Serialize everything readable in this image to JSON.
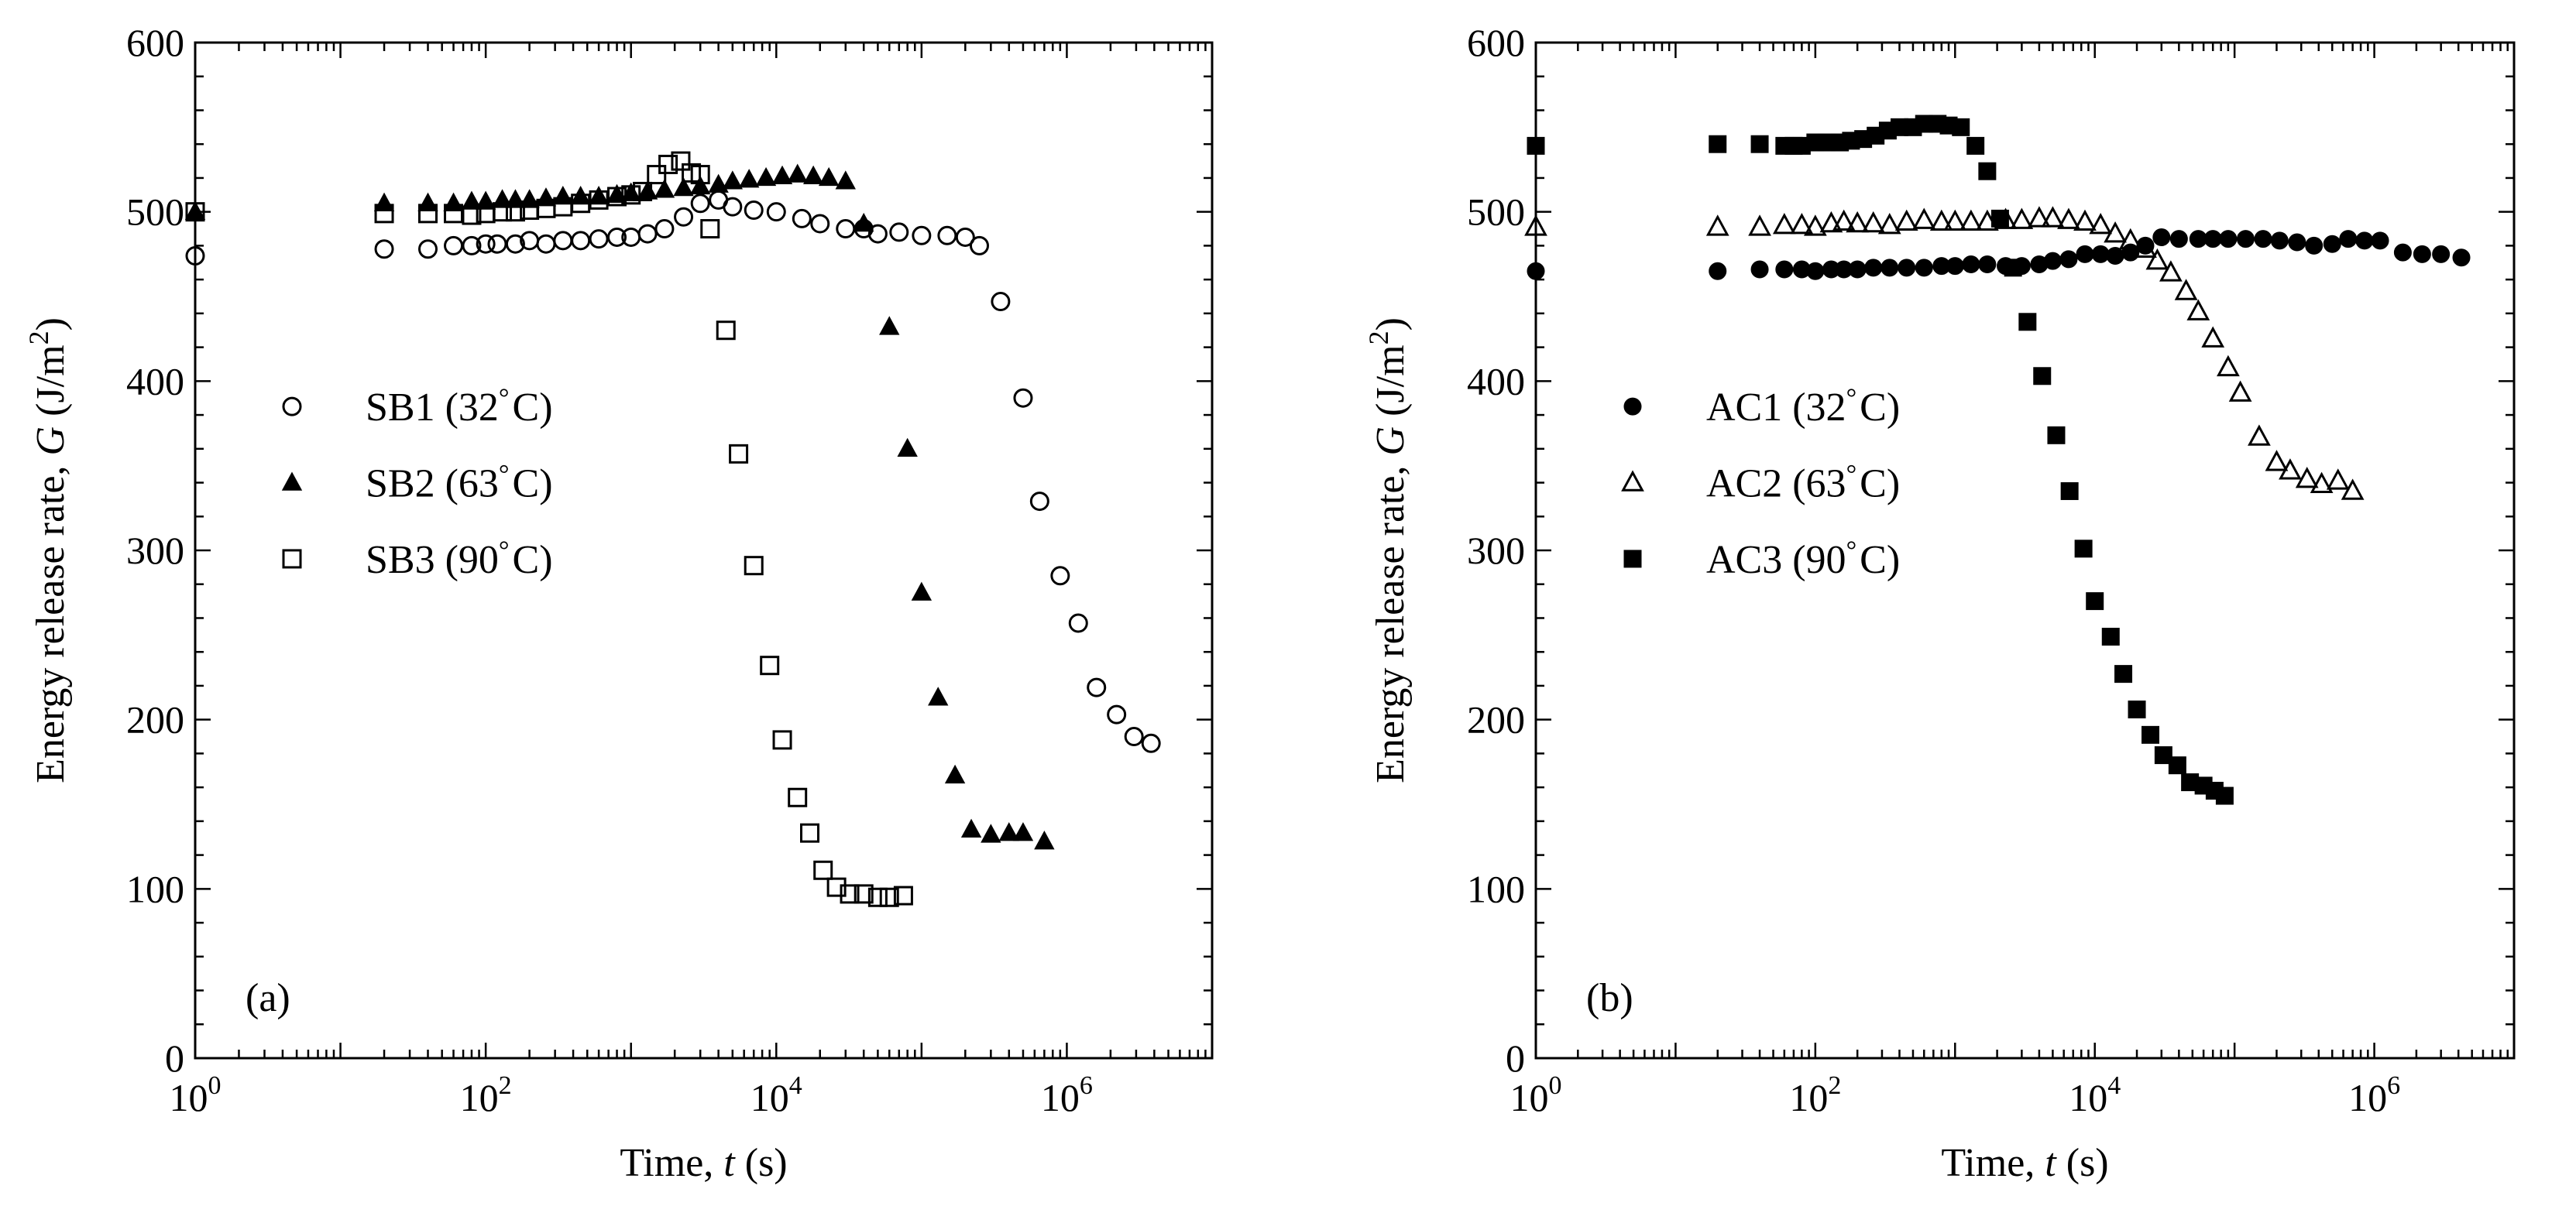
{
  "chart_data": [
    {
      "type": "scatter",
      "panel_label": "(a)",
      "xlabel": "Time, t (s)",
      "xlabel_parts": {
        "prefix": "Time, ",
        "var": "t",
        "suffix": " (s)"
      },
      "ylabel": "Energy release rate, G (J/m2)",
      "ylabel_parts": {
        "prefix": "Energy release rate, ",
        "var": "G",
        "unit_open": " (J/m",
        "sup": "2",
        "unit_close": ")"
      },
      "x_scale": "log",
      "xlim": [
        1,
        10000000
      ],
      "ylim": [
        0,
        600
      ],
      "xticks": [
        {
          "value": 1,
          "base": "10",
          "exp": "0"
        },
        {
          "value": 100,
          "base": "10",
          "exp": "2"
        },
        {
          "value": 10000,
          "base": "10",
          "exp": "4"
        },
        {
          "value": 1000000,
          "base": "10",
          "exp": "6"
        }
      ],
      "yticks": [
        {
          "value": 0,
          "label": "0"
        },
        {
          "value": 100,
          "label": "100"
        },
        {
          "value": 200,
          "label": "200"
        },
        {
          "value": 300,
          "label": "300"
        },
        {
          "value": 400,
          "label": "400"
        },
        {
          "value": 500,
          "label": "500"
        },
        {
          "value": 600,
          "label": "600"
        }
      ],
      "legend_position": "center-left",
      "series": [
        {
          "name": "SB1 (32°C)",
          "marker": "circle-open",
          "x": [
            1,
            20,
            40,
            60,
            80,
            100,
            120,
            160,
            200,
            260,
            340,
            450,
            600,
            800,
            1000,
            1300,
            1700,
            2300,
            3000,
            4000,
            5000,
            7000,
            10000,
            15000,
            20000,
            30000,
            40000,
            50000,
            70000,
            100000,
            150000,
            200000,
            250000,
            350000,
            500000,
            650000,
            900000,
            1200000,
            1600000,
            2200000,
            2900000,
            3800000
          ],
          "y": [
            474,
            478,
            478,
            480,
            480,
            481,
            481,
            481,
            483,
            481,
            483,
            483,
            484,
            485,
            485,
            487,
            490,
            497,
            505,
            507,
            503,
            501,
            500,
            496,
            493,
            490,
            490,
            487,
            488,
            486,
            486,
            485,
            480,
            447,
            390,
            329,
            285,
            257,
            219,
            203,
            190,
            186
          ]
        },
        {
          "name": "SB2 (63°C)",
          "marker": "triangle-filled",
          "x": [
            1,
            20,
            40,
            60,
            80,
            100,
            130,
            160,
            200,
            260,
            340,
            450,
            600,
            800,
            1000,
            1300,
            1700,
            2300,
            3000,
            4000,
            5000,
            6500,
            8500,
            11000,
            14000,
            18000,
            23000,
            30000,
            40000,
            60000,
            80000,
            100000,
            130000,
            170000,
            220000,
            300000,
            400000,
            500000,
            700000
          ],
          "y": [
            500,
            505,
            505,
            505,
            506,
            506,
            507,
            507,
            507,
            508,
            509,
            509,
            509,
            510,
            511,
            512,
            513,
            514,
            515,
            516,
            518,
            519,
            520,
            521,
            522,
            521,
            520,
            518,
            493,
            432,
            360,
            275,
            213,
            167,
            135,
            132,
            133,
            133,
            128
          ]
        },
        {
          "name": "SB3 (90°C)",
          "marker": "square-open",
          "x": [
            1,
            20,
            40,
            60,
            80,
            100,
            130,
            160,
            200,
            260,
            340,
            450,
            600,
            800,
            1000,
            1200,
            1500,
            1800,
            2200,
            2600,
            3000,
            3500,
            4500,
            5500,
            7000,
            9000,
            11000,
            14000,
            17000,
            21000,
            26000,
            32000,
            40000,
            50000,
            60000,
            75000
          ],
          "y": [
            500,
            499,
            499,
            499,
            498,
            499,
            500,
            500,
            501,
            502,
            503,
            505,
            507,
            509,
            510,
            512,
            522,
            528,
            530,
            523,
            522,
            490,
            430,
            357,
            291,
            232,
            188,
            154,
            133,
            111,
            101,
            97,
            97,
            95,
            95,
            96
          ]
        }
      ],
      "legend": [
        {
          "label": "SB1 (32",
          "deg": "°",
          "unit": "C)",
          "marker": "circle-open"
        },
        {
          "label": "SB2 (63",
          "deg": "°",
          "unit": "C)",
          "marker": "triangle-filled"
        },
        {
          "label": "SB3 (90",
          "deg": "°",
          "unit": "C)",
          "marker": "square-open"
        }
      ]
    },
    {
      "type": "scatter",
      "panel_label": "(b)",
      "xlabel": "Time, t (s)",
      "xlabel_parts": {
        "prefix": "Time, ",
        "var": "t",
        "suffix": " (s)"
      },
      "ylabel": "Energy release rate, G (J/m2)",
      "ylabel_parts": {
        "prefix": "Energy release rate, ",
        "var": "G",
        "unit_open": " (J/m",
        "sup": "2",
        "unit_close": ")"
      },
      "x_scale": "log",
      "xlim": [
        1,
        10000000
      ],
      "ylim": [
        0,
        600
      ],
      "xticks": [
        {
          "value": 1,
          "base": "10",
          "exp": "0"
        },
        {
          "value": 100,
          "base": "10",
          "exp": "2"
        },
        {
          "value": 10000,
          "base": "10",
          "exp": "4"
        },
        {
          "value": 1000000,
          "base": "10",
          "exp": "6"
        }
      ],
      "yticks": [
        {
          "value": 0,
          "label": "0"
        },
        {
          "value": 100,
          "label": "100"
        },
        {
          "value": 200,
          "label": "200"
        },
        {
          "value": 300,
          "label": "300"
        },
        {
          "value": 400,
          "label": "400"
        },
        {
          "value": 500,
          "label": "500"
        },
        {
          "value": 600,
          "label": "600"
        }
      ],
      "legend_position": "center-left",
      "series": [
        {
          "name": "AC1 (32°C)",
          "marker": "circle-filled",
          "x": [
            1,
            20,
            40,
            60,
            80,
            100,
            130,
            160,
            200,
            260,
            340,
            450,
            600,
            800,
            1000,
            1300,
            1700,
            2300,
            3000,
            4000,
            5000,
            6500,
            8500,
            11000,
            14000,
            18000,
            23000,
            30000,
            40000,
            55000,
            70000,
            90000,
            120000,
            160000,
            210000,
            280000,
            370000,
            500000,
            650000,
            850000,
            1100000,
            1600000,
            2200000,
            3000000,
            4200000
          ],
          "y": [
            465,
            465,
            466,
            466,
            466,
            465,
            466,
            466,
            466,
            467,
            467,
            467,
            467,
            468,
            468,
            469,
            469,
            468,
            468,
            469,
            471,
            472,
            475,
            475,
            474,
            476,
            480,
            485,
            484,
            484,
            484,
            484,
            484,
            484,
            483,
            482,
            480,
            481,
            484,
            483,
            483,
            476,
            475,
            475,
            473
          ]
        },
        {
          "name": "AC2 (63°C)",
          "marker": "triangle-open",
          "x": [
            1,
            20,
            40,
            60,
            80,
            100,
            130,
            160,
            200,
            260,
            340,
            450,
            600,
            800,
            1000,
            1300,
            1700,
            2300,
            3000,
            4000,
            5000,
            6500,
            8500,
            11000,
            14000,
            18000,
            23000,
            28000,
            35000,
            45000,
            55000,
            70000,
            90000,
            110000,
            150000,
            200000,
            250000,
            330000,
            420000,
            550000,
            700000
          ],
          "y": [
            491,
            491,
            491,
            492,
            492,
            491,
            493,
            494,
            493,
            493,
            492,
            494,
            495,
            494,
            494,
            494,
            494,
            495,
            495,
            496,
            496,
            495,
            494,
            492,
            487,
            483,
            478,
            471,
            464,
            453,
            441,
            425,
            408,
            393,
            367,
            352,
            347,
            342,
            339,
            341,
            335
          ]
        },
        {
          "name": "AC3 (90°C)",
          "marker": "square-filled",
          "x": [
            1,
            20,
            40,
            60,
            70,
            80,
            100,
            120,
            150,
            180,
            220,
            270,
            330,
            400,
            500,
            600,
            750,
            900,
            1100,
            1400,
            1700,
            2100,
            2600,
            3300,
            4200,
            5300,
            6600,
            8300,
            10000,
            13000,
            16000,
            20000,
            25000,
            31000,
            39000,
            48000,
            60000,
            72000,
            85000
          ],
          "y": [
            539,
            540,
            540,
            539,
            539,
            539,
            541,
            541,
            541,
            542,
            543,
            545,
            548,
            550,
            550,
            552,
            552,
            551,
            550,
            539,
            524,
            496,
            467,
            435,
            403,
            368,
            335,
            301,
            270,
            249,
            227,
            206,
            191,
            179,
            173,
            163,
            161,
            158,
            155
          ]
        }
      ],
      "legend": [
        {
          "label": "AC1 (32",
          "deg": "°",
          "unit": "C)",
          "marker": "circle-filled"
        },
        {
          "label": "AC2 (63",
          "deg": "°",
          "unit": "C)",
          "marker": "triangle-open"
        },
        {
          "label": "AC3 (90",
          "deg": "°",
          "unit": "C)",
          "marker": "square-filled"
        }
      ]
    }
  ]
}
